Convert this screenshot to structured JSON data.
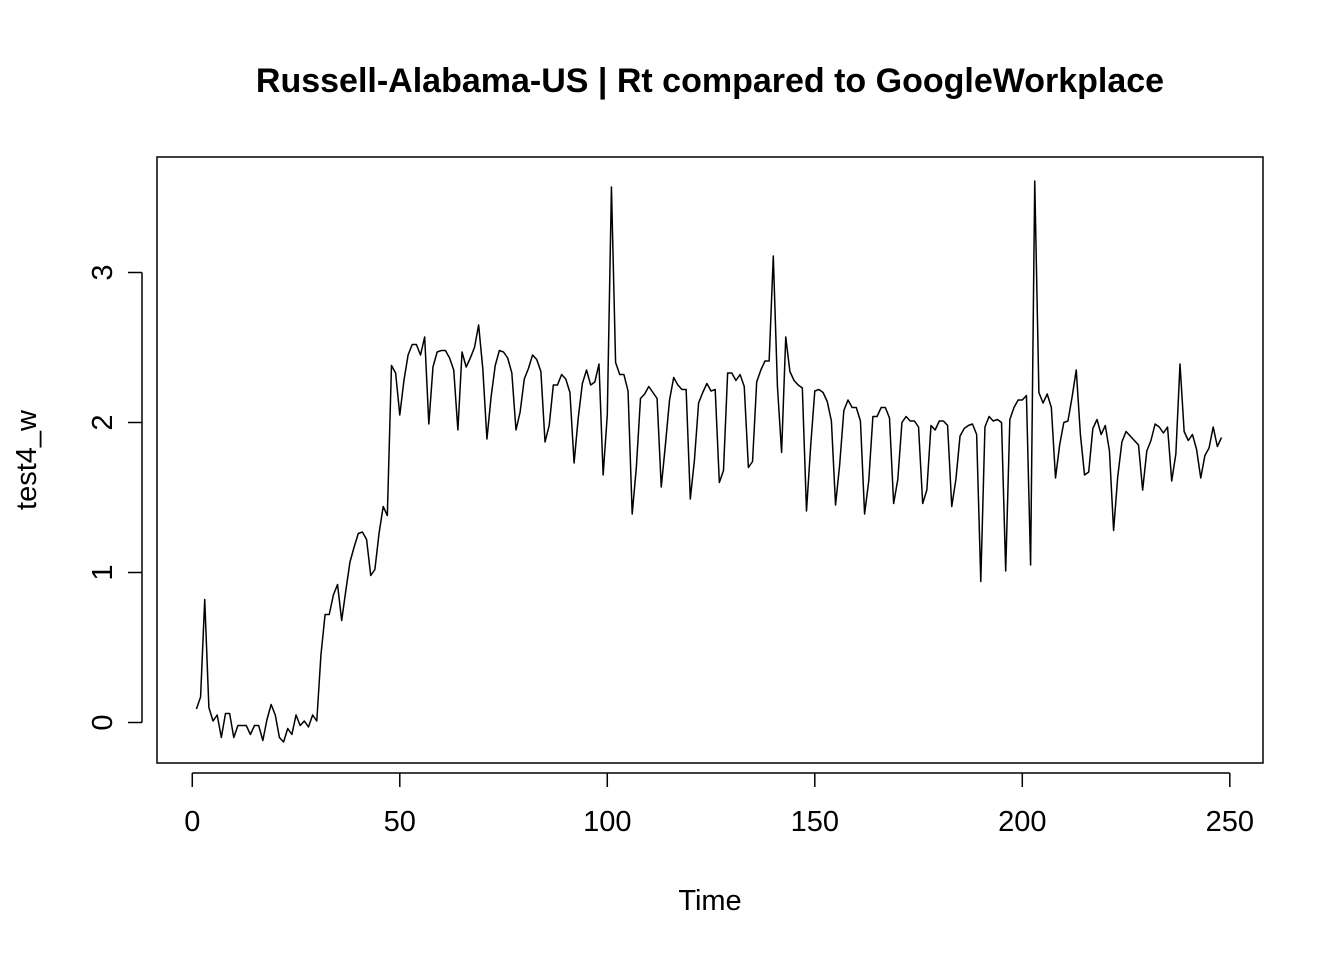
{
  "chart_data": {
    "type": "line",
    "title": "Russell-Alabama-US | Rt compared to GoogleWorkplace",
    "xlabel": "Time",
    "ylabel": "test4_w",
    "xlim": [
      -8.5,
      258
    ],
    "ylim": [
      -0.27,
      3.77
    ],
    "x_ticks": [
      0,
      50,
      100,
      150,
      200,
      250
    ],
    "x_tick_labels": [
      "0",
      "50",
      "100",
      "150",
      "200",
      "250"
    ],
    "y_ticks": [
      0,
      1,
      2,
      3
    ],
    "y_tick_labels": [
      "0",
      "1",
      "2",
      "3"
    ],
    "grid": false,
    "legend": "none",
    "series": [
      {
        "color": "#000000",
        "x_start": 1,
        "values": [
          0.09,
          0.17,
          0.82,
          0.1,
          0.01,
          0.05,
          -0.1,
          0.06,
          0.06,
          -0.1,
          -0.02,
          -0.02,
          -0.02,
          -0.08,
          -0.02,
          -0.02,
          -0.12,
          0.02,
          0.12,
          0.05,
          -0.1,
          -0.13,
          -0.04,
          -0.08,
          0.05,
          -0.02,
          0.01,
          -0.03,
          0.05,
          0.01,
          0.45,
          0.72,
          0.72,
          0.85,
          0.92,
          0.68,
          0.88,
          1.07,
          1.17,
          1.26,
          1.27,
          1.22,
          0.98,
          1.02,
          1.26,
          1.44,
          1.38,
          2.38,
          2.33,
          2.05,
          2.28,
          2.45,
          2.52,
          2.52,
          2.45,
          2.57,
          1.99,
          2.37,
          2.47,
          2.48,
          2.48,
          2.43,
          2.35,
          1.95,
          2.47,
          2.37,
          2.43,
          2.5,
          2.65,
          2.36,
          1.89,
          2.17,
          2.38,
          2.48,
          2.47,
          2.43,
          2.33,
          1.95,
          2.07,
          2.29,
          2.36,
          2.45,
          2.42,
          2.34,
          1.87,
          1.98,
          2.25,
          2.25,
          2.32,
          2.29,
          2.2,
          1.73,
          2.03,
          2.26,
          2.35,
          2.25,
          2.27,
          2.39,
          1.65,
          2.05,
          3.57,
          2.4,
          2.32,
          2.32,
          2.21,
          1.39,
          1.7,
          2.16,
          2.19,
          2.24,
          2.2,
          2.16,
          1.57,
          1.85,
          2.15,
          2.3,
          2.25,
          2.22,
          2.22,
          1.49,
          1.75,
          2.13,
          2.2,
          2.26,
          2.21,
          2.22,
          1.6,
          1.68,
          2.33,
          2.33,
          2.28,
          2.32,
          2.24,
          1.7,
          1.74,
          2.27,
          2.35,
          2.41,
          2.41,
          3.11,
          2.24,
          1.8,
          2.57,
          2.34,
          2.28,
          2.25,
          2.23,
          1.41,
          1.84,
          2.21,
          2.22,
          2.2,
          2.14,
          2.01,
          1.45,
          1.72,
          2.08,
          2.15,
          2.1,
          2.1,
          2.01,
          1.39,
          1.61,
          2.04,
          2.04,
          2.1,
          2.1,
          2.03,
          1.46,
          1.62,
          2.0,
          2.04,
          2.01,
          2.01,
          1.97,
          1.46,
          1.55,
          1.98,
          1.95,
          2.01,
          2.01,
          1.98,
          1.44,
          1.62,
          1.91,
          1.96,
          1.98,
          1.99,
          1.92,
          0.94,
          1.97,
          2.04,
          2.01,
          2.02,
          2.0,
          1.01,
          2.02,
          2.1,
          2.15,
          2.15,
          2.18,
          1.05,
          3.61,
          2.2,
          2.13,
          2.19,
          2.1,
          1.63,
          1.85,
          2.0,
          2.01,
          2.17,
          2.35,
          1.92,
          1.65,
          1.67,
          1.96,
          2.02,
          1.92,
          1.98,
          1.81,
          1.28,
          1.64,
          1.87,
          1.94,
          1.91,
          1.88,
          1.85,
          1.55,
          1.81,
          1.88,
          1.99,
          1.97,
          1.93,
          1.97,
          1.61,
          1.79,
          2.39,
          1.94,
          1.88,
          1.92,
          1.82,
          1.63,
          1.78,
          1.83,
          1.97,
          1.84,
          1.9
        ]
      }
    ]
  }
}
